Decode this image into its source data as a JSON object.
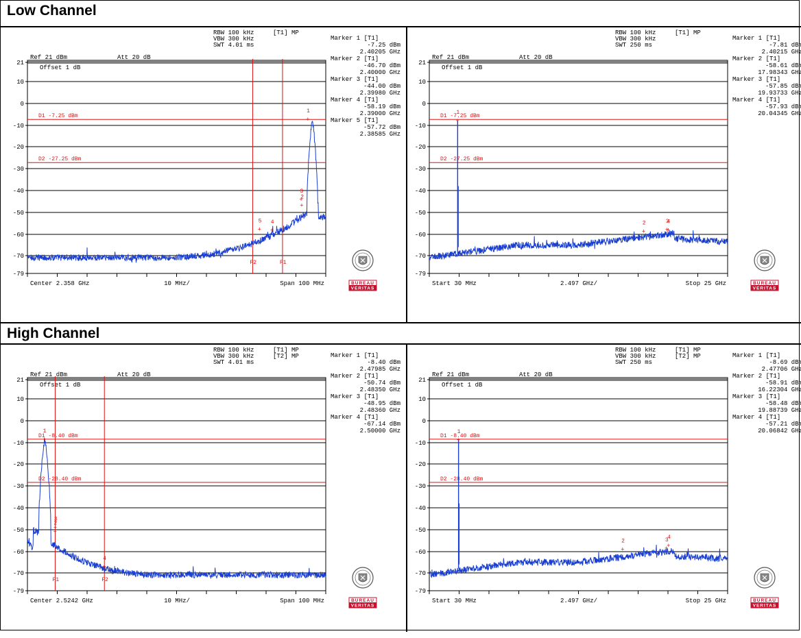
{
  "sections": [
    {
      "title": "Low Channel"
    },
    {
      "title": "High Channel"
    }
  ],
  "logo": {
    "top": "BUREAU",
    "bottom": "VERITAS",
    "color": "#c8102e"
  },
  "colors": {
    "trace": "#1a3fd0",
    "marker": "#e01010",
    "grid": "#000000"
  },
  "chart_data": [
    {
      "type": "line",
      "panel": "low-left",
      "header": {
        "rbw": "RBW 100 kHz",
        "vbw": "VBW 300 kHz",
        "swt": "SWT 4.01 ms",
        "trace": "[T1] MP",
        "trace2": "",
        "ref": "Ref 21 dBm",
        "att": "Att  20 dB",
        "offset": "Offset 1 dB"
      },
      "yticks": [
        "21",
        "10",
        "0",
        "-10",
        "-20",
        "-30",
        "-40",
        "-50",
        "-60",
        "-70",
        "-79"
      ],
      "ylim": [
        -79,
        21
      ],
      "xlim": [
        2.308,
        2.408
      ],
      "x_unit": "GHz",
      "footer": {
        "left": "Center 2.358 GHz",
        "mid": "10 MHz/",
        "right": "Span 100 MHz"
      },
      "display_lines": [
        {
          "label": "D1 -7.25 dBm",
          "y": -7.25
        },
        {
          "label": "D2 -27.25 dBm",
          "y": -27.25
        }
      ],
      "freq_lines": [
        {
          "label": "F2",
          "x": 2.3835
        },
        {
          "label": "F1",
          "x": 2.3935
        }
      ],
      "trace_shape": "low_inband",
      "marker_points": [
        {
          "n": "1",
          "x": 2.40205,
          "y": -7.25
        },
        {
          "n": "2",
          "x": 2.4,
          "y": -46.7
        },
        {
          "n": "3",
          "x": 2.3998,
          "y": -44.0
        },
        {
          "n": "4",
          "x": 2.39,
          "y": -58.19
        },
        {
          "n": "5",
          "x": 2.38585,
          "y": -57.72
        }
      ],
      "markers": [
        {
          "name": "Marker 1 [T1]",
          "level": "-7.25 dBm",
          "freq": "2.40205 GHz"
        },
        {
          "name": "Marker 2 [T1]",
          "level": "-46.70 dBm",
          "freq": "2.40000 GHz"
        },
        {
          "name": "Marker 3 [T1]",
          "level": "-44.00 dBm",
          "freq": "2.39980 GHz"
        },
        {
          "name": "Marker 4 [T1]",
          "level": "-58.19 dBm",
          "freq": "2.39000 GHz"
        },
        {
          "name": "Marker 5 [T1]",
          "level": "-57.72 dBm",
          "freq": "2.38585 GHz"
        }
      ]
    },
    {
      "type": "line",
      "panel": "low-right",
      "header": {
        "rbw": "RBW 100 kHz",
        "vbw": "VBW 300 kHz",
        "swt": "SWT 250 ms",
        "trace": "[T1] MP",
        "trace2": "",
        "ref": "Ref 21 dBm",
        "att": "Att  20 dB",
        "offset": "Offset 1 dB"
      },
      "yticks": [
        "21",
        "10",
        "0",
        "-10",
        "-20",
        "-30",
        "-40",
        "-50",
        "-60",
        "-70",
        "-79"
      ],
      "ylim": [
        -79,
        21
      ],
      "xlim": [
        0.03,
        25.0
      ],
      "x_unit": "GHz",
      "footer": {
        "left": "Start 30 MHz",
        "mid": "2.497 GHz/",
        "right": "Stop 25 GHz"
      },
      "display_lines": [
        {
          "label": "D1 -7.25 dBm",
          "y": -7.25
        },
        {
          "label": "D2 -27.25 dBm",
          "y": -27.25
        }
      ],
      "freq_lines": [],
      "trace_shape": "wideband_low",
      "marker_points": [
        {
          "n": "1",
          "x": 2.40215,
          "y": -7.81
        },
        {
          "n": "2",
          "x": 17.98343,
          "y": -58.61
        },
        {
          "n": "3",
          "x": 19.93733,
          "y": -57.85
        },
        {
          "n": "4",
          "x": 20.04345,
          "y": -57.93
        }
      ],
      "markers": [
        {
          "name": "Marker 1 [T1]",
          "level": "-7.81 dBm",
          "freq": "2.40215 GHz"
        },
        {
          "name": "Marker 2 [T1]",
          "level": "-58.61 dBm",
          "freq": "17.98343 GHz"
        },
        {
          "name": "Marker 3 [T1]",
          "level": "-57.85 dBm",
          "freq": "19.93733 GHz"
        },
        {
          "name": "Marker 4 [T1]",
          "level": "-57.93 dBm",
          "freq": "20.04345 GHz"
        }
      ]
    },
    {
      "type": "line",
      "panel": "high-left",
      "header": {
        "rbw": "RBW 100 kHz",
        "vbw": "VBW 300 kHz",
        "swt": "SWT 4.01 ms",
        "trace": "[T1] MP",
        "trace2": "[T2] MP",
        "ref": "Ref 21 dBm",
        "att": "Att  20 dB",
        "offset": "Offset 1 dB"
      },
      "yticks": [
        "21",
        "10",
        "0",
        "-10",
        "-20",
        "-30",
        "-40",
        "-50",
        "-60",
        "-70",
        "-79"
      ],
      "ylim": [
        -79,
        21
      ],
      "xlim": [
        2.4742,
        2.5742
      ],
      "x_unit": "GHz",
      "footer": {
        "left": "Center 2.5242 GHz",
        "mid": "10 MHz/",
        "right": "Span 100 MHz"
      },
      "display_lines": [
        {
          "label": "D1 -8.40 dBm",
          "y": -8.4
        },
        {
          "label": "D2 -28.40 dBm",
          "y": -28.4
        }
      ],
      "freq_lines": [
        {
          "label": "F1",
          "x": 2.4835
        },
        {
          "label": "F2",
          "x": 2.5
        }
      ],
      "trace_shape": "high_inband",
      "marker_points": [
        {
          "n": "1",
          "x": 2.47985,
          "y": -8.4
        },
        {
          "n": "2",
          "x": 2.4835,
          "y": -50.74
        },
        {
          "n": "3",
          "x": 2.4836,
          "y": -48.95
        },
        {
          "n": "4",
          "x": 2.5,
          "y": -67.14
        }
      ],
      "markers": [
        {
          "name": "Marker 1 [T1]",
          "level": "-8.40 dBm",
          "freq": "2.47985 GHz"
        },
        {
          "name": "Marker 2 [T1]",
          "level": "-50.74 dBm",
          "freq": "2.48350 GHz"
        },
        {
          "name": "Marker 3 [T1]",
          "level": "-48.95 dBm",
          "freq": "2.48360 GHz"
        },
        {
          "name": "Marker 4 [T1]",
          "level": "-67.14 dBm",
          "freq": "2.50000 GHz"
        }
      ]
    },
    {
      "type": "line",
      "panel": "high-right",
      "header": {
        "rbw": "RBW 100 kHz",
        "vbw": "VBW 300 kHz",
        "swt": "SWT 250 ms",
        "trace": "[T1] MP",
        "trace2": "[T2] MP",
        "ref": "Ref 21 dBm",
        "att": "Att  20 dB",
        "offset": "Offset 1 dB"
      },
      "yticks": [
        "21",
        "10",
        "0",
        "-10",
        "-20",
        "-30",
        "-40",
        "-50",
        "-60",
        "-70",
        "-79"
      ],
      "ylim": [
        -79,
        21
      ],
      "xlim": [
        0.03,
        25.0
      ],
      "x_unit": "GHz",
      "footer": {
        "left": "Start 30 MHz",
        "mid": "2.497 GHz/",
        "right": "Stop 25 GHz"
      },
      "display_lines": [
        {
          "label": "D1 -8.40 dBm",
          "y": -8.4
        },
        {
          "label": "D2 -28.40 dBm",
          "y": -28.4
        }
      ],
      "freq_lines": [],
      "trace_shape": "wideband_high",
      "marker_points": [
        {
          "n": "1",
          "x": 2.47706,
          "y": -8.69
        },
        {
          "n": "2",
          "x": 16.22304,
          "y": -58.91
        },
        {
          "n": "3",
          "x": 19.88739,
          "y": -58.48
        },
        {
          "n": "4",
          "x": 20.06842,
          "y": -57.21
        }
      ],
      "markers": [
        {
          "name": "Marker 1 [T1]",
          "level": "-8.69 dBm",
          "freq": "2.47706 GHz"
        },
        {
          "name": "Marker 2 [T1]",
          "level": "-58.91 dBm",
          "freq": "16.22304 GHz"
        },
        {
          "name": "Marker 3 [T1]",
          "level": "-58.48 dBm",
          "freq": "19.88739 GHz"
        },
        {
          "name": "Marker 4 [T1]",
          "level": "-57.21 dBm",
          "freq": "20.06842 GHz"
        }
      ]
    }
  ]
}
